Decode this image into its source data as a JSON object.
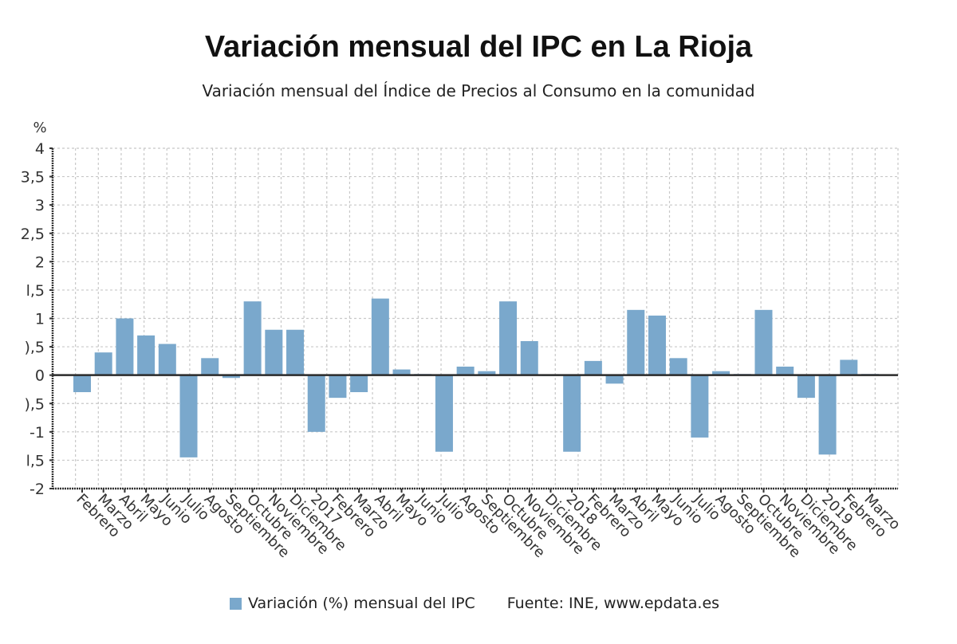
{
  "chart_data": {
    "type": "bar",
    "title": "Variación mensual del IPC en La Rioja",
    "subtitle": "Variación mensual del Índice de Precios al Consumo en la comunidad",
    "ylabel": "%",
    "xlabel": "",
    "ylim": [
      -2,
      4
    ],
    "yticks": [
      -2,
      -1.5,
      -1,
      -0.5,
      0,
      0.5,
      1,
      1.5,
      2,
      2.5,
      3,
      3.5,
      4
    ],
    "ytick_labels": [
      "-2",
      ",5",
      "-1",
      ",5",
      "0",
      ",5",
      "1",
      ",5",
      "2",
      ",5",
      "3",
      ",5",
      "4"
    ],
    "ytick_labels_visible": [
      "-2",
      "l,5",
      "-1",
      "),5",
      "0",
      "),5",
      "1",
      "l,5",
      "2",
      "2,5",
      "3",
      "3,5",
      "4"
    ],
    "grid": true,
    "bar_color": "#7aa8cc",
    "categories": [
      "Febrero",
      "Marzo",
      "Abril",
      "Mayo",
      "Junio",
      "Julio",
      "Agosto",
      "Septiembre",
      "Octubre",
      "Noviembre",
      "Diciembre",
      "2017",
      "Febrero",
      "Marzo",
      "Abril",
      "Mayo",
      "Junio",
      "Julio",
      "Agosto",
      "Septiembre",
      "Octubre",
      "Noviembre",
      "Diciembre",
      "2018",
      "Febrero",
      "Marzo",
      "Abril",
      "Mayo",
      "Junio",
      "Julio",
      "Agosto",
      "Septiembre",
      "Octubre",
      "Noviembre",
      "Diciembre",
      "2019",
      "Febrero",
      "Marzo"
    ],
    "series": [
      {
        "name": "Variación (%) mensual del IPC",
        "values": [
          -0.3,
          0.4,
          1.0,
          0.7,
          0.55,
          -1.45,
          0.3,
          -0.05,
          1.3,
          0.8,
          0.8,
          -1.0,
          -0.4,
          -0.3,
          1.35,
          0.1,
          0.02,
          -1.35,
          0.15,
          0.07,
          1.3,
          0.6,
          0.0,
          -1.35,
          0.25,
          -0.15,
          1.15,
          1.05,
          0.3,
          -1.1,
          0.07,
          0.02,
          1.15,
          0.15,
          -0.4,
          -1.4,
          0.27,
          0.02
        ]
      }
    ],
    "legend": {
      "position": "bottom-center",
      "label": "Variación (%) mensual del IPC"
    },
    "source": "Fuente: INE, www.epdata.es"
  }
}
